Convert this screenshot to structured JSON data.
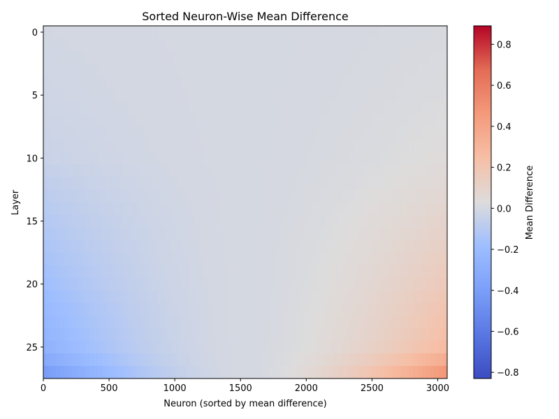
{
  "chart_data": {
    "type": "heatmap",
    "title": "Sorted Neuron-Wise Mean Difference",
    "xlabel": "Neuron (sorted by mean difference)",
    "ylabel": "Layer",
    "xlim": [
      0,
      3072
    ],
    "ylim": [
      -0.5,
      27.5
    ],
    "y_inverted": true,
    "x_ticks": [
      "0",
      "500",
      "1000",
      "1500",
      "2000",
      "2500",
      "3000"
    ],
    "y_ticks": [
      "0",
      "5",
      "10",
      "15",
      "20",
      "25"
    ],
    "n_layers": 28,
    "n_neurons": 3072,
    "colorscale": "coolwarm",
    "colorbar": {
      "label": "Mean Difference",
      "vmin": -0.83,
      "vmax": 0.89,
      "ticks": [
        "−0.8",
        "−0.6",
        "−0.4",
        "−0.2",
        "0.0",
        "0.2",
        "0.4",
        "0.6",
        "0.8"
      ]
    },
    "layer_extremes": {
      "layers": [
        0,
        5,
        10,
        12,
        15,
        18,
        20,
        22,
        24,
        25,
        26,
        27
      ],
      "min_diff": [
        -0.01,
        -0.02,
        -0.04,
        -0.07,
        -0.11,
        -0.15,
        -0.18,
        -0.22,
        -0.25,
        -0.27,
        -0.33,
        -0.42
      ],
      "max_diff": [
        0.01,
        0.02,
        0.04,
        0.06,
        0.1,
        0.14,
        0.17,
        0.21,
        0.24,
        0.27,
        0.36,
        0.48
      ]
    }
  }
}
